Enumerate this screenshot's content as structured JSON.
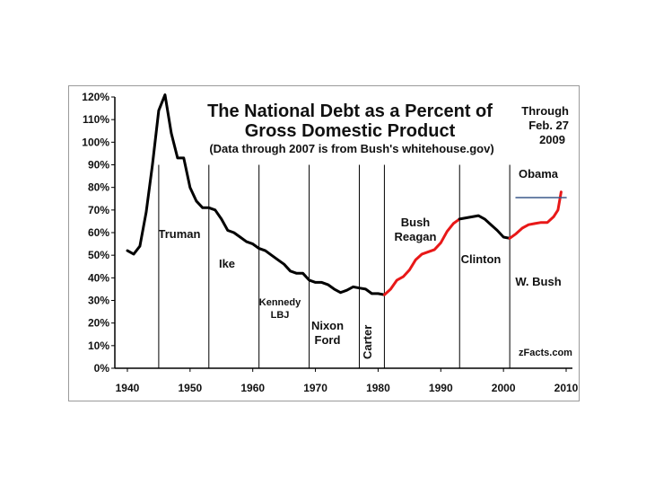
{
  "chart_data": {
    "type": "line",
    "title_line1": "The National Debt as a Percent of",
    "title_line2": "Gross Domestic Product",
    "subtitle": "(Data through 2007 is from Bush's whitehouse.gov)",
    "note_line1": "Through",
    "note_line2": "Feb. 27",
    "note_line3": "2009",
    "source": "zFacts.com",
    "xlim": [
      1938,
      2011
    ],
    "ylim": [
      0,
      120
    ],
    "x_ticks": [
      1940,
      1950,
      1960,
      1970,
      1980,
      1990,
      2000,
      2010
    ],
    "y_ticks": [
      0,
      10,
      20,
      30,
      40,
      50,
      60,
      70,
      80,
      90,
      100,
      110,
      120
    ],
    "y_tick_suffix": "%",
    "grid": false,
    "colors": {
      "black_line": "#000000",
      "red_line": "#e81818",
      "obama_line": "#3b5a8c",
      "divider": "#000000"
    },
    "eras": [
      {
        "label_lines": [
          "Truman"
        ],
        "divider_year": 1945
      },
      {
        "label_lines": [
          "Ike"
        ],
        "divider_year": 1953
      },
      {
        "label_lines": [
          "Kennedy",
          "LBJ"
        ],
        "divider_year": 1961
      },
      {
        "label_lines": [
          "Nixon",
          "Ford"
        ],
        "divider_year": 1969
      },
      {
        "label_lines": [
          "Carter"
        ],
        "divider_year": 1977,
        "rotated": true
      },
      {
        "label_lines": [
          "Bush",
          "Reagan"
        ],
        "divider_year": 1981
      },
      {
        "label_lines": [
          "Clinton"
        ],
        "divider_year": 1993
      },
      {
        "label_lines": [
          "W. Bush"
        ],
        "divider_year": 2001
      },
      {
        "label_lines": [
          "Obama"
        ]
      }
    ],
    "series": [
      {
        "color": "#000000",
        "points": [
          [
            1940,
            52
          ],
          [
            1941,
            50.5
          ],
          [
            1942,
            54
          ],
          [
            1943,
            69
          ],
          [
            1944,
            90
          ],
          [
            1945,
            114
          ],
          [
            1946,
            121
          ],
          [
            1947,
            104
          ],
          [
            1948,
            93
          ],
          [
            1949,
            93
          ],
          [
            1950,
            80
          ],
          [
            1951,
            74
          ],
          [
            1952,
            71
          ],
          [
            1953,
            71
          ],
          [
            1954,
            70
          ],
          [
            1955,
            66
          ],
          [
            1956,
            61
          ],
          [
            1957,
            60
          ],
          [
            1958,
            58
          ],
          [
            1959,
            56
          ],
          [
            1960,
            55
          ],
          [
            1961,
            53
          ],
          [
            1962,
            52
          ],
          [
            1963,
            50
          ],
          [
            1964,
            48
          ],
          [
            1965,
            46
          ],
          [
            1966,
            43
          ],
          [
            1967,
            42
          ],
          [
            1968,
            42
          ],
          [
            1969,
            39
          ],
          [
            1970,
            38
          ],
          [
            1971,
            38
          ],
          [
            1972,
            37
          ],
          [
            1973,
            35
          ],
          [
            1974,
            33.5
          ],
          [
            1975,
            34.5
          ],
          [
            1976,
            36
          ],
          [
            1977,
            35.5
          ],
          [
            1978,
            35
          ],
          [
            1979,
            33
          ],
          [
            1980,
            33
          ],
          [
            1981,
            32.5
          ]
        ]
      },
      {
        "color": "#e81818",
        "points": [
          [
            1981,
            32.5
          ],
          [
            1982,
            35
          ],
          [
            1983,
            39
          ],
          [
            1984,
            40.5
          ],
          [
            1985,
            43.5
          ],
          [
            1986,
            48
          ],
          [
            1987,
            50.5
          ],
          [
            1988,
            51.5
          ],
          [
            1989,
            52.5
          ],
          [
            1990,
            55.5
          ],
          [
            1991,
            60.5
          ],
          [
            1992,
            64
          ],
          [
            1993,
            66
          ]
        ]
      },
      {
        "color": "#000000",
        "points": [
          [
            1993,
            66
          ],
          [
            1994,
            66.5
          ],
          [
            1995,
            67
          ],
          [
            1996,
            67.5
          ],
          [
            1997,
            66
          ],
          [
            1998,
            63.5
          ],
          [
            1999,
            61
          ],
          [
            2000,
            58
          ],
          [
            2001,
            57.5
          ]
        ]
      },
      {
        "color": "#e81818",
        "points": [
          [
            2001,
            57.5
          ],
          [
            2002,
            59.5
          ],
          [
            2003,
            62
          ],
          [
            2004,
            63.5
          ],
          [
            2005,
            64
          ],
          [
            2006,
            64.5
          ],
          [
            2007,
            64.5
          ],
          [
            2008,
            67
          ],
          [
            2008.7,
            70
          ],
          [
            2009.2,
            78
          ]
        ]
      },
      {
        "color": "#3b5a8c",
        "points": [
          [
            2002,
            75.5
          ],
          [
            2010,
            75.5
          ]
        ]
      }
    ]
  }
}
